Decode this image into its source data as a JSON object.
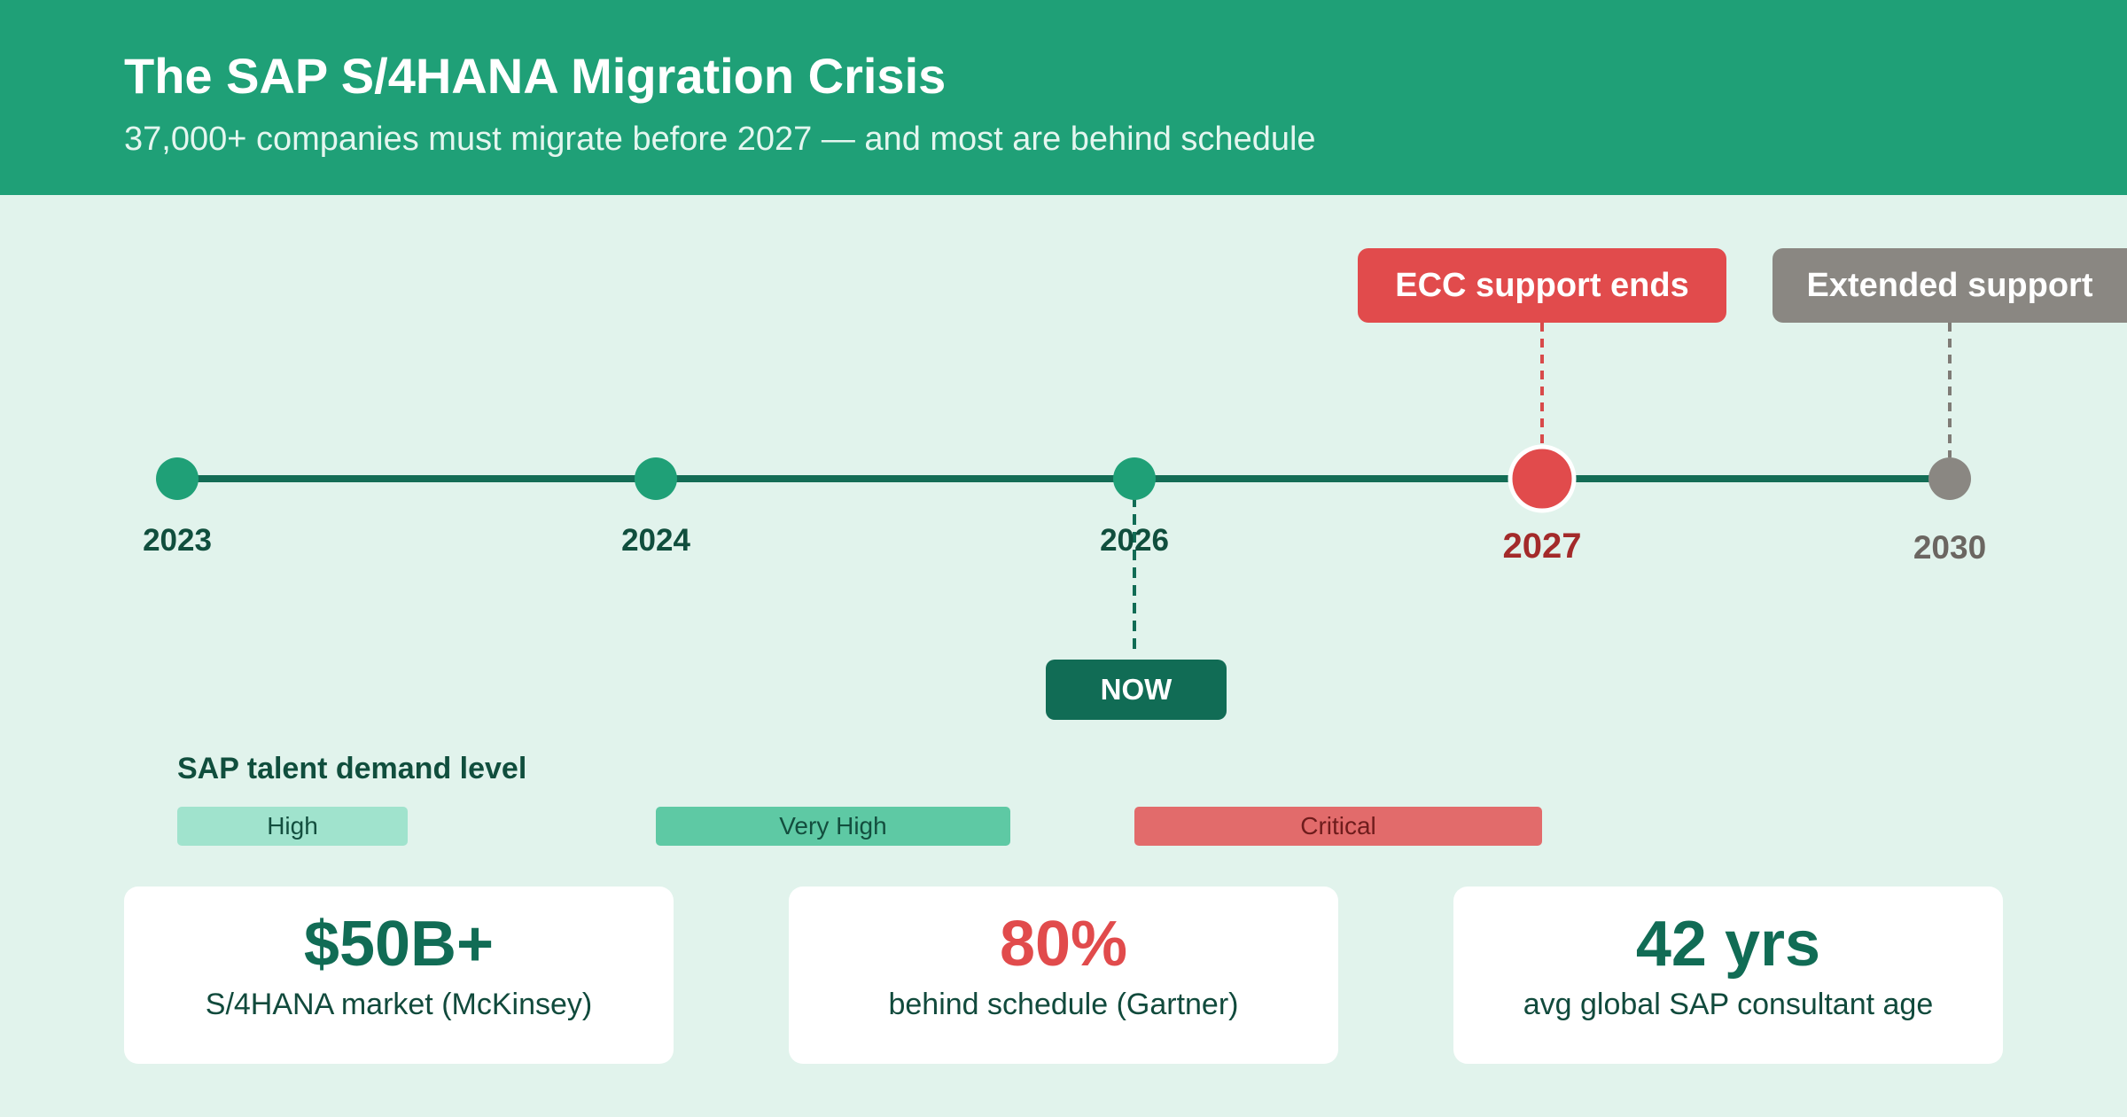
{
  "header": {
    "title": "The SAP S/4HANA Migration Crisis",
    "subtitle": "37,000+ companies must migrate before 2027 — and most are behind schedule"
  },
  "timeline": {
    "years": [
      "2023",
      "2024",
      "2026",
      "2027",
      "2030"
    ],
    "callouts": {
      "ecc_end": "ECC support ends",
      "extended": "Extended support"
    },
    "now_label": "NOW"
  },
  "demand": {
    "title": "SAP talent demand level",
    "levels": [
      "High",
      "Very High",
      "Critical"
    ]
  },
  "stats": [
    {
      "value": "$50B+",
      "label": "S/4HANA market (McKinsey)",
      "color": "#116c55"
    },
    {
      "value": "80%",
      "label": "behind schedule (Gartner)",
      "color": "#e14b4c"
    },
    {
      "value": "42 yrs",
      "label": "avg global SAP consultant age",
      "color": "#116c55"
    }
  ],
  "colors": {
    "brand_green": "#1fa077",
    "dark_green": "#116c55",
    "critical_red": "#e14b4c",
    "muted_grey": "#8a8782",
    "background": "#e1f3ec"
  }
}
